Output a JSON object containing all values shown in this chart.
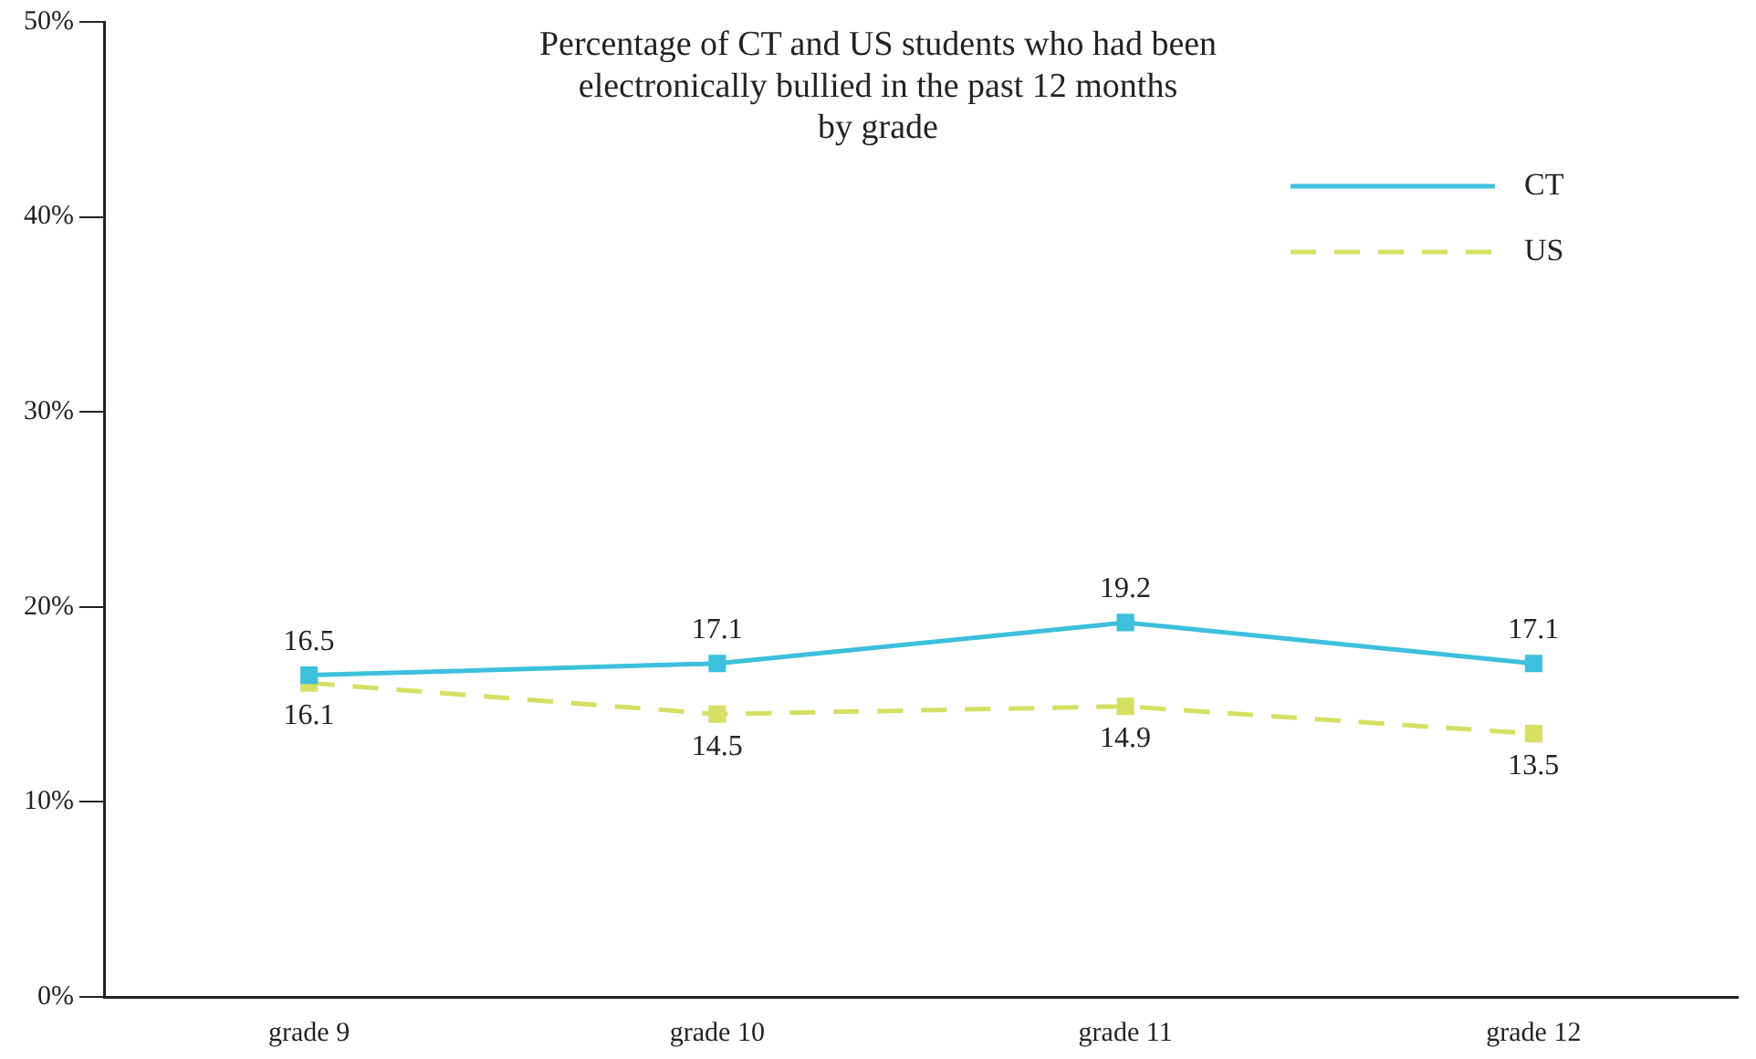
{
  "chart_data": {
    "type": "line",
    "title": "Percentage of CT and US students who had been\nelectronically bullied in the past 12 months\nby grade",
    "categories": [
      "grade 9",
      "grade 10",
      "grade 11",
      "grade 12"
    ],
    "series": [
      {
        "name": "CT",
        "color": "#3cc0dc",
        "values": [
          16.5,
          17.1,
          19.2,
          17.1
        ],
        "line_style": "solid"
      },
      {
        "name": "US",
        "color": "#d5df62",
        "values": [
          16.1,
          14.5,
          14.9,
          13.5
        ],
        "line_style": "dashed"
      }
    ],
    "ylim": [
      0,
      50
    ],
    "yticks": [
      {
        "value": 0,
        "label": "0%"
      },
      {
        "value": 10,
        "label": "10%"
      },
      {
        "value": 20,
        "label": "20%"
      },
      {
        "value": 30,
        "label": "30%"
      },
      {
        "value": 40,
        "label": "40%"
      },
      {
        "value": 50,
        "label": "50%"
      }
    ],
    "grid": false,
    "legend": "top right",
    "marker": "square",
    "data_labels": true
  }
}
